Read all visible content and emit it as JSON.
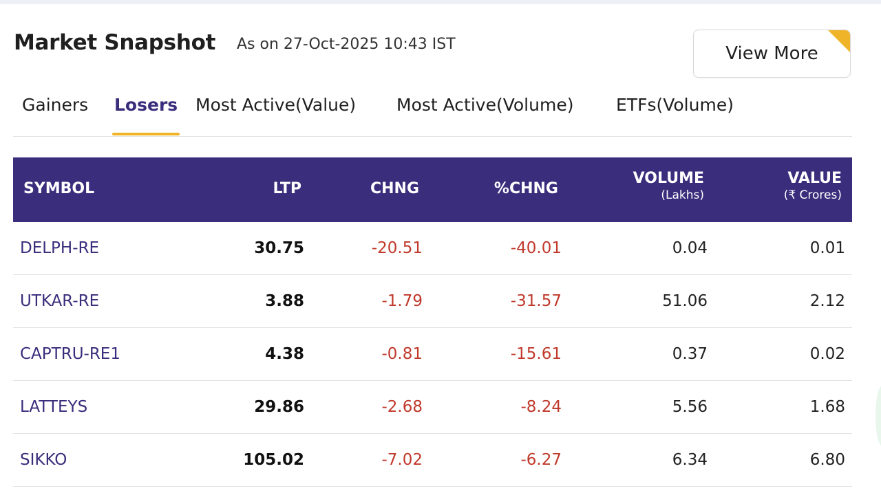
{
  "header": {
    "title": "Market Snapshot",
    "as_of": "As on 27-Oct-2025 10:43 IST",
    "view_more_label": "View More"
  },
  "tabs": [
    {
      "label": "Gainers",
      "active": false
    },
    {
      "label": "Losers",
      "active": true
    },
    {
      "label": "Most Active(Value)",
      "active": false
    },
    {
      "label": "Most Active(Volume)",
      "active": false
    },
    {
      "label": "ETFs(Volume)",
      "active": false
    }
  ],
  "table": {
    "columns": {
      "symbol": "SYMBOL",
      "ltp": "LTP",
      "chng": "CHNG",
      "pchng": "%CHNG",
      "volume": "VOLUME",
      "volume_unit": "(Lakhs)",
      "value": "VALUE",
      "value_unit": "(₹ Crores)"
    },
    "rows": [
      {
        "symbol": "DELPH-RE",
        "ltp": "30.75",
        "chng": "-20.51",
        "pchng": "-40.01",
        "volume": "0.04",
        "value": "0.01"
      },
      {
        "symbol": "UTKAR-RE",
        "ltp": "3.88",
        "chng": "-1.79",
        "pchng": "-31.57",
        "volume": "51.06",
        "value": "2.12"
      },
      {
        "symbol": "CAPTRU-RE1",
        "ltp": "4.38",
        "chng": "-0.81",
        "pchng": "-15.61",
        "volume": "0.37",
        "value": "0.02"
      },
      {
        "symbol": "LATTEYS",
        "ltp": "29.86",
        "chng": "-2.68",
        "pchng": "-8.24",
        "volume": "5.56",
        "value": "1.68"
      },
      {
        "symbol": "SIKKO",
        "ltp": "105.02",
        "chng": "-7.02",
        "pchng": "-6.27",
        "volume": "6.34",
        "value": "6.80"
      }
    ]
  },
  "colors": {
    "accent": "#3a2d7c",
    "highlight": "#f0b429",
    "negative": "#c0392b"
  }
}
